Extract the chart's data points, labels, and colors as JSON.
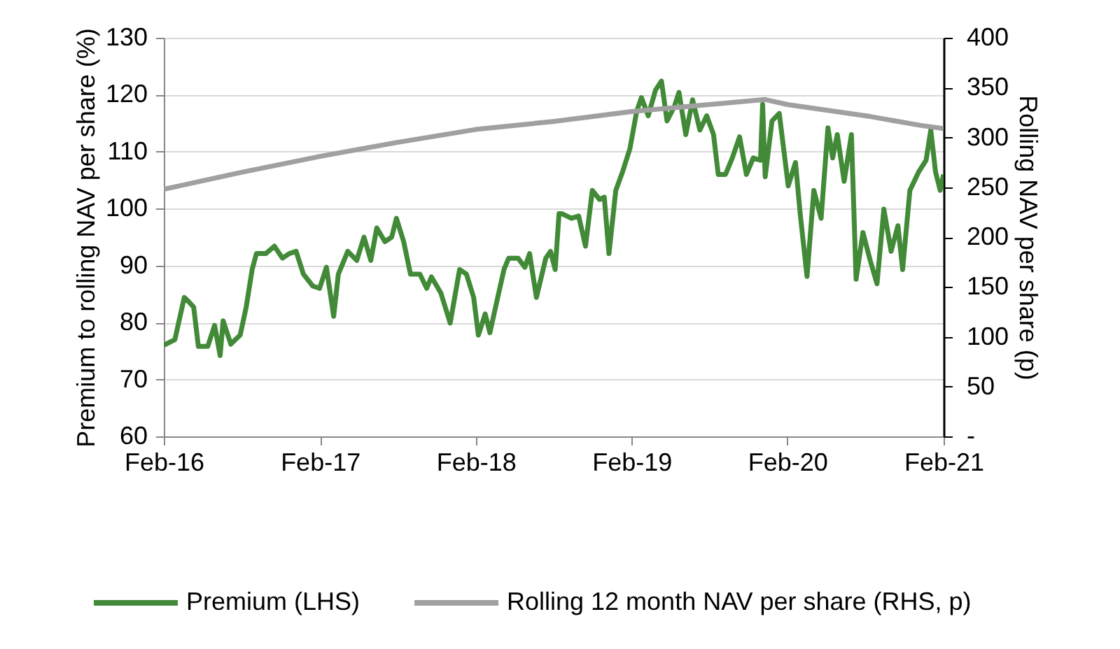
{
  "chart_data": {
    "type": "line",
    "ylabel": "Premium to rolling NAV per share (%)",
    "y2label": "Rolling NAV per share (p)",
    "xlim": [
      "2016-02-01",
      "2021-02-01"
    ],
    "xticks": [
      {
        "value": "2016-02-01",
        "label": "Feb-16"
      },
      {
        "value": "2017-02-01",
        "label": "Feb-17"
      },
      {
        "value": "2018-02-01",
        "label": "Feb-18"
      },
      {
        "value": "2019-02-01",
        "label": "Feb-19"
      },
      {
        "value": "2020-02-01",
        "label": "Feb-20"
      },
      {
        "value": "2021-02-01",
        "label": "Feb-21"
      }
    ],
    "ylim": [
      60,
      130
    ],
    "yticks": [
      60,
      70,
      80,
      90,
      100,
      110,
      120,
      130
    ],
    "y2lim": [
      0,
      400
    ],
    "y2ticks": [
      {
        "value": 0,
        "label": "-"
      },
      50,
      100,
      150,
      200,
      250,
      300,
      350,
      400
    ],
    "grid": "y",
    "legend": "bottom",
    "series": [
      {
        "name": "Premium (LHS)",
        "color": "#428a38",
        "x": [
          "2016-02-01",
          "2016-02-27",
          "2016-03-20",
          "2016-03-31",
          "2016-04-11",
          "2016-04-22",
          "2016-05-14",
          "2016-05-30",
          "2016-06-12",
          "2016-06-19",
          "2016-07-07",
          "2016-07-29",
          "2016-08-12",
          "2016-08-26",
          "2016-09-05",
          "2016-09-27",
          "2016-10-17",
          "2016-11-05",
          "2016-11-21",
          "2016-12-07",
          "2016-12-24",
          "2017-01-15",
          "2017-01-31",
          "2017-02-16",
          "2017-03-05",
          "2017-03-16",
          "2017-04-07",
          "2017-04-28",
          "2017-05-15",
          "2017-05-31",
          "2017-06-14",
          "2017-07-03",
          "2017-07-19",
          "2017-07-30",
          "2017-08-16",
          "2017-09-01",
          "2017-09-23",
          "2017-10-09",
          "2017-10-20",
          "2017-11-11",
          "2017-12-03",
          "2017-12-25",
          "2018-01-10",
          "2018-01-27",
          "2018-02-07",
          "2018-02-23",
          "2018-03-06",
          "2018-03-22",
          "2018-04-08",
          "2018-04-19",
          "2018-05-11",
          "2018-05-27",
          "2018-06-07",
          "2018-06-23",
          "2018-07-15",
          "2018-07-26",
          "2018-08-06",
          "2018-08-15",
          "2018-08-22",
          "2018-09-13",
          "2018-09-30",
          "2018-10-16",
          "2018-11-01",
          "2018-11-18",
          "2018-11-29",
          "2018-12-10",
          "2018-12-26",
          "2019-01-11",
          "2019-01-28",
          "2019-02-13",
          "2019-02-24",
          "2019-03-12",
          "2019-03-29",
          "2019-04-12",
          "2019-04-25",
          "2019-05-12",
          "2019-05-23",
          "2019-06-08",
          "2019-06-24",
          "2019-07-11",
          "2019-07-27",
          "2019-08-12",
          "2019-08-23",
          "2019-09-09",
          "2019-09-25",
          "2019-10-12",
          "2019-10-28",
          "2019-11-13",
          "2019-11-30",
          "2019-12-05",
          "2019-12-11",
          "2019-12-27",
          "2020-01-13",
          "2020-02-03",
          "2020-02-20",
          "2020-03-02",
          "2020-03-18",
          "2020-04-03",
          "2020-04-20",
          "2020-05-06",
          "2020-05-17",
          "2020-05-28",
          "2020-06-13",
          "2020-06-30",
          "2020-07-11",
          "2020-07-27",
          "2020-08-13",
          "2020-08-29",
          "2020-09-14",
          "2020-10-01",
          "2020-10-17",
          "2020-10-28",
          "2020-11-14",
          "2020-12-05",
          "2020-12-22",
          "2021-01-02",
          "2021-01-13",
          "2021-01-24",
          "2021-02-01"
        ],
        "values": [
          76,
          77,
          84.4,
          83.6,
          82.7,
          75.8,
          75.8,
          79.5,
          74.2,
          80.3,
          76.2,
          77.8,
          82.7,
          89.3,
          92.1,
          92.1,
          93.4,
          91.3,
          92.1,
          92.5,
          88.5,
          86.4,
          86,
          89.7,
          81.1,
          88.5,
          92.5,
          90.9,
          95,
          90.9,
          96.6,
          94.2,
          95,
          98.3,
          94.2,
          88.5,
          88.5,
          86,
          88,
          85.2,
          79.9,
          89.3,
          88.5,
          84.4,
          77.8,
          81.5,
          78.2,
          83.6,
          89.3,
          91.3,
          91.3,
          89.7,
          92.1,
          84.4,
          91.3,
          92.5,
          89.3,
          99.1,
          99.1,
          98.3,
          98.7,
          93.4,
          103.2,
          101.6,
          102,
          92.1,
          103.2,
          106.5,
          110.5,
          117.1,
          119.5,
          116.3,
          120.8,
          122.4,
          115.4,
          117.9,
          120.4,
          113,
          119.1,
          113.8,
          116.3,
          113,
          106,
          106,
          108.9,
          112.6,
          106,
          108.9,
          108.5,
          118.3,
          105.6,
          115.4,
          116.7,
          104,
          108.1,
          99.1,
          88.1,
          103.2,
          98.3,
          114.2,
          108.9,
          113,
          104.8,
          113,
          87.6,
          95.8,
          90.9,
          86.8,
          99.9,
          92.5,
          97,
          89.3,
          103.2,
          106.5,
          108.5,
          113.8,
          106.5,
          103.2,
          106
        ]
      },
      {
        "name": "Rolling 12 month NAV per share (RHS, p)",
        "color": "#a0a0a0",
        "axis": "y2",
        "x": [
          "2016-02-01",
          "2016-08-01",
          "2017-02-01",
          "2017-08-01",
          "2018-02-01",
          "2018-08-01",
          "2019-02-01",
          "2019-12-11",
          "2020-02-01",
          "2020-08-13",
          "2020-12-10",
          "2021-02-01"
        ],
        "values": [
          248,
          265,
          281,
          295,
          308,
          316,
          326,
          338,
          333,
          321,
          312,
          309
        ]
      }
    ]
  }
}
